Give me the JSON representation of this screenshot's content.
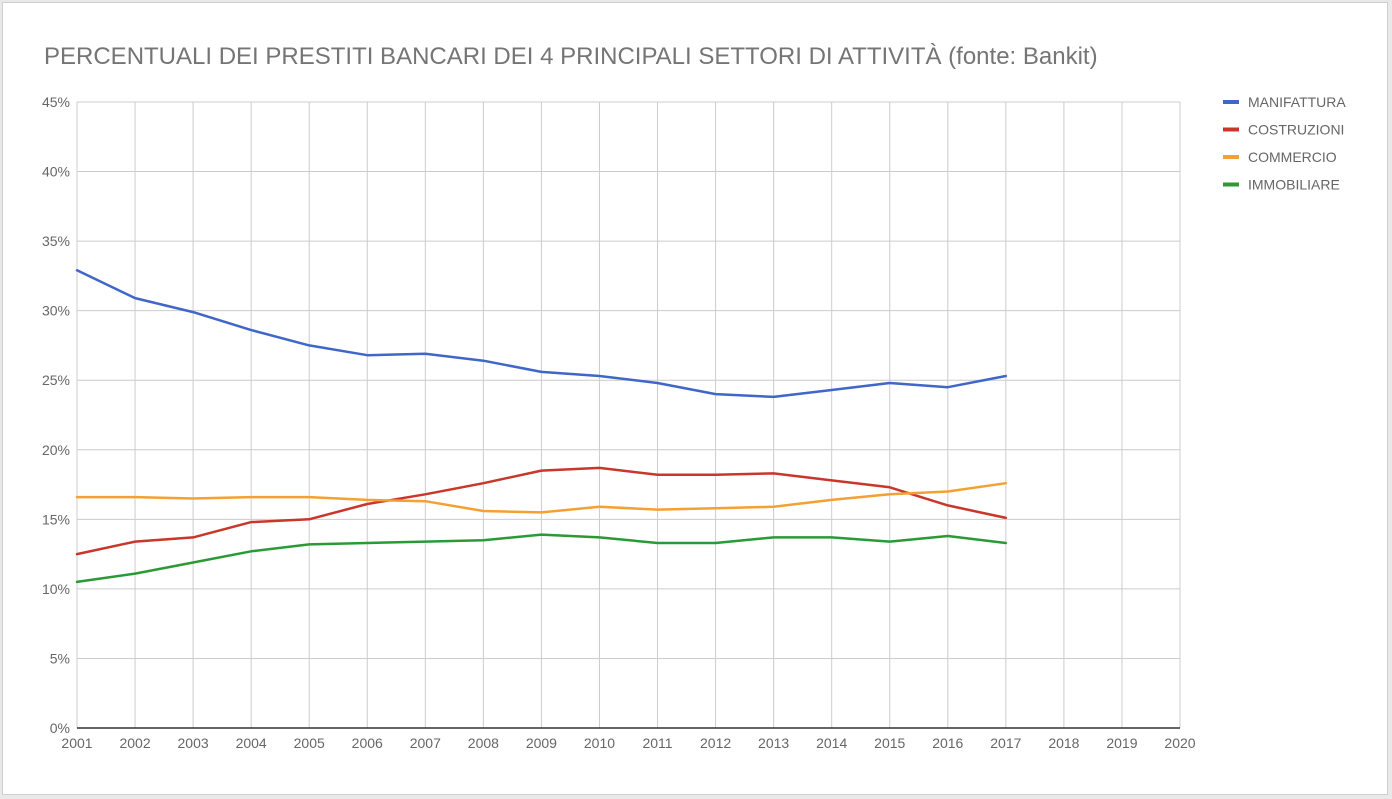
{
  "chart_data": {
    "type": "line",
    "title": "PERCENTUALI DEI PRESTITI BANCARI DEI 4 PRINCIPALI SETTORI DI ATTIVITÀ (fonte: Bankit)",
    "x": [
      2001,
      2002,
      2003,
      2004,
      2005,
      2006,
      2007,
      2008,
      2009,
      2010,
      2011,
      2012,
      2013,
      2014,
      2015,
      2016,
      2017
    ],
    "x_ticks": [
      "2001",
      "2002",
      "2003",
      "2004",
      "2005",
      "2006",
      "2007",
      "2008",
      "2009",
      "2010",
      "2011",
      "2012",
      "2013",
      "2014",
      "2015",
      "2016",
      "2017",
      "2018",
      "2019",
      "2020"
    ],
    "xlim": [
      2001,
      2020
    ],
    "ylim": [
      0,
      45
    ],
    "y_ticks": [
      "0%",
      "5%",
      "10%",
      "15%",
      "20%",
      "25%",
      "30%",
      "35%",
      "40%",
      "45%"
    ],
    "grid": true,
    "legend_position": "right",
    "series": [
      {
        "name": "MANIFATTURA",
        "color": "#3f66c8",
        "values": [
          32.9,
          30.9,
          29.9,
          28.6,
          27.5,
          26.8,
          26.9,
          26.4,
          25.6,
          25.3,
          24.8,
          24.0,
          23.8,
          24.3,
          24.8,
          24.5,
          25.3
        ]
      },
      {
        "name": "COSTRUZIONI",
        "color": "#c8372a",
        "values": [
          12.5,
          13.4,
          13.7,
          14.8,
          15.0,
          16.1,
          16.8,
          17.6,
          18.5,
          18.7,
          18.2,
          18.2,
          18.3,
          17.8,
          17.3,
          16.0,
          15.1
        ]
      },
      {
        "name": "COMMERCIO",
        "color": "#f4a032",
        "values": [
          16.6,
          16.6,
          16.5,
          16.6,
          16.6,
          16.4,
          16.3,
          15.6,
          15.5,
          15.9,
          15.7,
          15.8,
          15.9,
          16.4,
          16.8,
          17.0,
          17.6
        ]
      },
      {
        "name": "IMMOBILIARE",
        "color": "#2b9a35",
        "values": [
          10.5,
          11.1,
          11.9,
          12.7,
          13.2,
          13.3,
          13.4,
          13.5,
          13.9,
          13.7,
          13.3,
          13.3,
          13.7,
          13.7,
          13.4,
          13.8,
          13.3
        ]
      }
    ]
  }
}
